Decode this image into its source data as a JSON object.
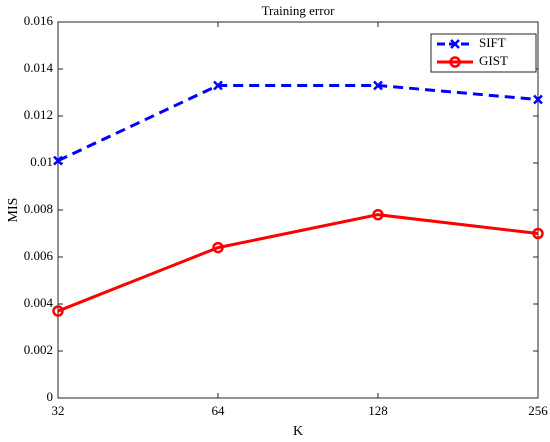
{
  "chart_data": {
    "type": "line",
    "title": "Training error",
    "x_label": "K",
    "y_label": "MIS",
    "categories": [
      "32",
      "64",
      "128",
      "256"
    ],
    "series": [
      {
        "name": "SIFT",
        "color": "#0000ff",
        "linestyle": "dashed",
        "marker": "x",
        "values": [
          0.0101,
          0.0133,
          0.0133,
          0.0127
        ]
      },
      {
        "name": "GIST",
        "color": "#ff0000",
        "linestyle": "solid",
        "marker": "o",
        "values": [
          0.0037,
          0.0064,
          0.0078,
          0.007
        ]
      }
    ],
    "ylim": [
      0,
      0.016
    ],
    "yticks": [
      0,
      0.002,
      0.004,
      0.006,
      0.008,
      0.01,
      0.012,
      0.014,
      0.016
    ],
    "grid": false,
    "legend": "upper right"
  }
}
